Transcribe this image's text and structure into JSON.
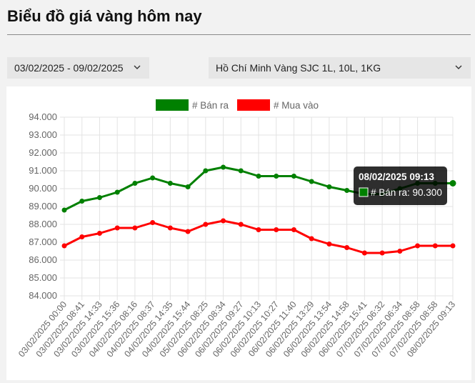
{
  "header": {
    "title": "Biểu đồ giá vàng hôm nay"
  },
  "filters": {
    "date_range": "03/02/2025 - 09/02/2025",
    "product": "Hồ Chí Minh Vàng SJC 1L, 10L, 1KG"
  },
  "icons": {
    "dropdown": "chevron-down-icon"
  },
  "chart_data": {
    "type": "line",
    "title": "",
    "xlabel": "",
    "ylabel": "",
    "ylim": [
      84000,
      94000
    ],
    "yticks": [
      "94.000",
      "93.000",
      "92.000",
      "91.000",
      "90.000",
      "89.000",
      "88.000",
      "87.000",
      "86.000",
      "85.000",
      "84.000"
    ],
    "grid": true,
    "legend_position": "top-center",
    "categories": [
      "03/02/2025 00:00",
      "03/02/2025 08:41",
      "03/02/2025 14:33",
      "03/02/2025 15:36",
      "04/02/2025 08:16",
      "04/02/2025 08:37",
      "04/02/2025 14:35",
      "04/02/2025 15:44",
      "05/02/2025 08:25",
      "06/02/2025 08:34",
      "06/02/2025 09:27",
      "06/02/2025 10:13",
      "06/02/2025 10:27",
      "06/02/2025 11:40",
      "06/02/2025 13:29",
      "06/02/2025 13:54",
      "06/02/2025 14:58",
      "06/02/2025 15:41",
      "07/02/2025 06:32",
      "07/02/2025 06:34",
      "07/02/2025 08:58",
      "07/02/2025 08:58",
      "08/02/2025 09:13"
    ],
    "series": [
      {
        "name": "# Bán ra",
        "color": "#008000",
        "values": [
          88800,
          89300,
          89500,
          89800,
          90300,
          90600,
          90300,
          90100,
          91000,
          91200,
          91000,
          90700,
          90700,
          90700,
          90400,
          90100,
          89900,
          89700,
          89700,
          90000,
          90300,
          90300,
          90300
        ]
      },
      {
        "name": "# Mua vào",
        "color": "#ff0000",
        "values": [
          86800,
          87300,
          87500,
          87800,
          87800,
          88100,
          87800,
          87600,
          88000,
          88200,
          88000,
          87700,
          87700,
          87700,
          87200,
          86900,
          86700,
          86400,
          86400,
          86500,
          86800,
          86800,
          86800
        ]
      }
    ],
    "tooltip": {
      "title": "08/02/2025 09:13",
      "label": "# Bán ra: 90.300",
      "color": "#008000",
      "point_index": 22,
      "series_index": 0
    }
  }
}
